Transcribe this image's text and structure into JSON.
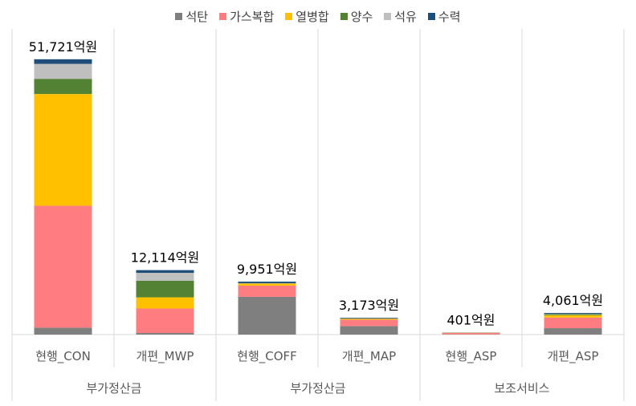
{
  "chart_data": {
    "type": "bar",
    "stacked": true,
    "categories": [
      "현행_CON",
      "개편_MWP",
      "현행_COFF",
      "개편_MAP",
      "현행_ASP",
      "개편_ASP"
    ],
    "groups": [
      {
        "label": "부가정산금",
        "categories": [
          "현행_CON",
          "개편_MWP"
        ]
      },
      {
        "label": "부가정산금",
        "categories": [
          "현행_COFF",
          "개편_MAP"
        ]
      },
      {
        "label": "보조서비스",
        "categories": [
          "현행_ASP",
          "개편_ASP"
        ]
      }
    ],
    "totals": [
      "51,721억원",
      "12,114억원",
      "9,951억원",
      "3,173억원",
      "401억원",
      "4,061억원"
    ],
    "series": [
      {
        "name": "석탄",
        "color": "#7f7f7f",
        "values": [
          1300,
          300,
          7100,
          1600,
          50,
          1200
        ]
      },
      {
        "name": "가스복합",
        "color": "#ff7c80",
        "values": [
          22900,
          4600,
          2100,
          1200,
          250,
          2000
        ]
      },
      {
        "name": "열병합",
        "color": "#ffc000",
        "values": [
          21000,
          2100,
          380,
          180,
          40,
          450
        ]
      },
      {
        "name": "양수",
        "color": "#548235",
        "values": [
          2850,
          3100,
          40,
          40,
          20,
          210
        ]
      },
      {
        "name": "석유",
        "color": "#bfbfbf",
        "values": [
          2800,
          1500,
          40,
          30,
          20,
          50
        ]
      },
      {
        "name": "수력",
        "color": "#1f4e79",
        "values": [
          871,
          514,
          291,
          123,
          21,
          151
        ]
      }
    ],
    "legend_position": "top",
    "ylim": [
      0,
      52000
    ],
    "grid": false
  }
}
